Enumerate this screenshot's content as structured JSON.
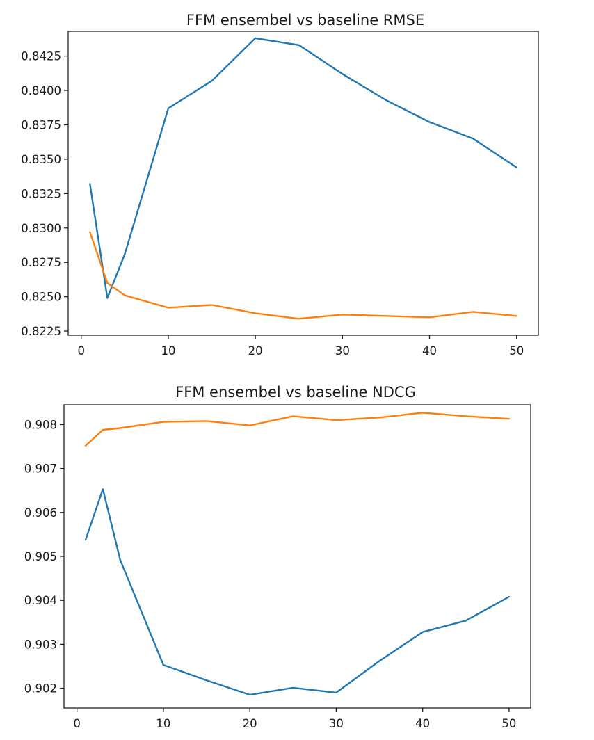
{
  "chart_data": [
    {
      "type": "line",
      "title": "FFM ensembel vs baseline RMSE",
      "xlabel": "",
      "ylabel": "",
      "xlim": [
        -1.5,
        52.5
      ],
      "ylim": [
        0.8222,
        0.8443
      ],
      "xticks": [
        0,
        10,
        20,
        30,
        40,
        50
      ],
      "xtick_labels": [
        "0",
        "10",
        "20",
        "30",
        "40",
        "50"
      ],
      "yticks": [
        0.8225,
        0.825,
        0.8275,
        0.83,
        0.8325,
        0.835,
        0.8375,
        0.84,
        0.8425
      ],
      "ytick_labels": [
        "0.8225",
        "0.8250",
        "0.8275",
        "0.8300",
        "0.8325",
        "0.8350",
        "0.8375",
        "0.8400",
        "0.8425"
      ],
      "grid": false,
      "x": [
        1,
        3,
        5,
        10,
        15,
        20,
        25,
        30,
        35,
        40,
        45,
        50
      ],
      "series": [
        {
          "color": "#1f77b4",
          "values": [
            0.8332,
            0.8249,
            0.8281,
            0.8387,
            0.8407,
            0.8438,
            0.8433,
            0.8412,
            0.8393,
            0.8377,
            0.8365,
            0.8344
          ]
        },
        {
          "color": "#ff7f0e",
          "values": [
            0.8297,
            0.826,
            0.8251,
            0.8242,
            0.8244,
            0.8238,
            0.8234,
            0.8237,
            0.8236,
            0.8235,
            0.8239,
            0.8236
          ]
        }
      ]
    },
    {
      "type": "line",
      "title": "FFM ensembel vs baseline NDCG",
      "xlabel": "",
      "ylabel": "",
      "xlim": [
        -1.5,
        52.5
      ],
      "ylim": [
        9.0155,
        9.0845
      ],
      "ylim_units": "hundredths",
      "ylim_actual": [
        0.90155,
        0.90845
      ],
      "xticks": [
        0,
        10,
        20,
        30,
        40,
        50
      ],
      "xtick_labels": [
        "0",
        "10",
        "20",
        "30",
        "40",
        "50"
      ],
      "yticks": [
        0.902,
        0.903,
        0.904,
        0.905,
        0.906,
        0.907,
        0.908
      ],
      "ytick_labels": [
        "0.902",
        "0.903",
        "0.904",
        "0.905",
        "0.906",
        "0.907",
        "0.908"
      ],
      "grid": false,
      "x": [
        1,
        3,
        5,
        10,
        15,
        20,
        25,
        30,
        35,
        40,
        45,
        50
      ],
      "series": [
        {
          "color": "#1f77b4",
          "values": [
            0.90538,
            0.90653,
            0.90492,
            0.90253,
            0.90218,
            0.90185,
            0.90201,
            0.9019,
            0.90262,
            0.90328,
            0.90354,
            0.90408
          ]
        },
        {
          "color": "#ff7f0e",
          "values": [
            0.90752,
            0.90788,
            0.90792,
            0.90806,
            0.90808,
            0.90798,
            0.90819,
            0.9081,
            0.90816,
            0.90827,
            0.90819,
            0.90813
          ]
        }
      ]
    }
  ]
}
